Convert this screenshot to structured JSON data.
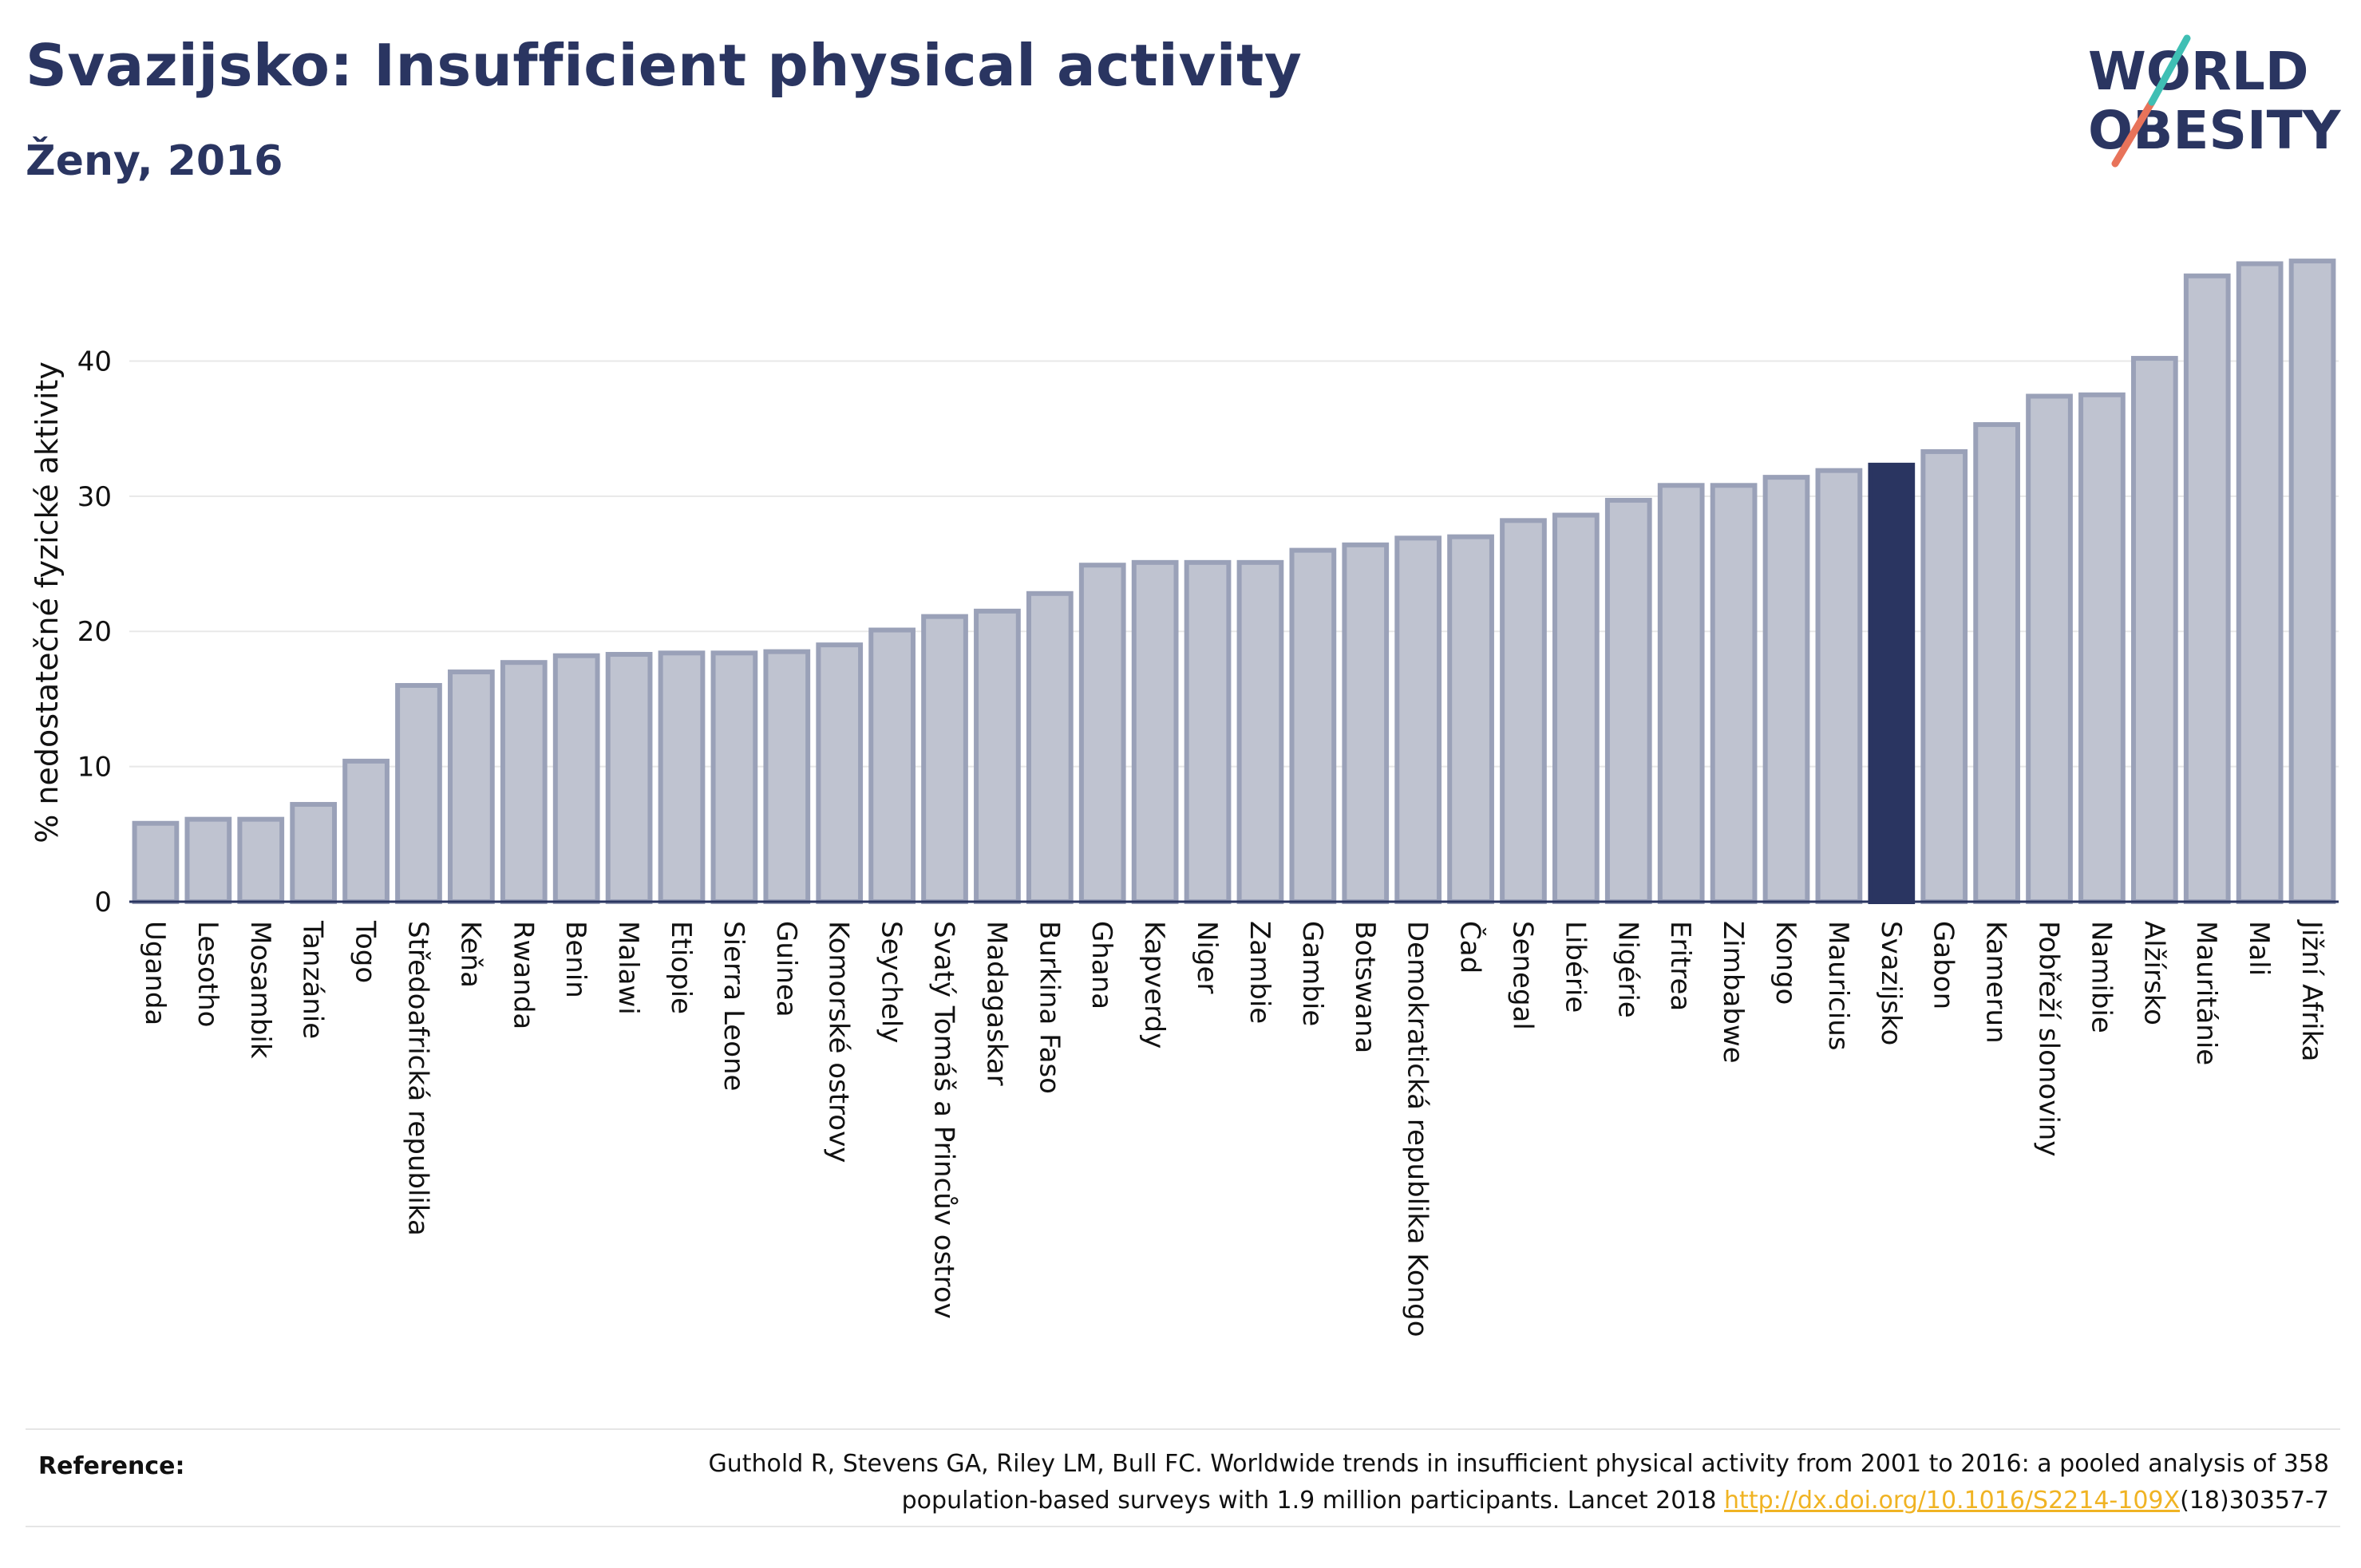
{
  "header": {
    "title": "Svazijsko: Insufficient physical activity",
    "subtitle": "Ženy, 2016"
  },
  "logo": {
    "line1": "WORLD",
    "line2": "OBESITY"
  },
  "colors": {
    "bar": "#bfc3d0",
    "bar_edge": "#9aa1b8",
    "highlight": "#2a3561",
    "grid": "#e8e8e8"
  },
  "chart_data": {
    "type": "bar",
    "ylabel": "% nedostatečné fyzické aktivity",
    "xlabel": "",
    "ylim": [
      0,
      49
    ],
    "yticks": [
      0,
      10,
      20,
      30,
      40
    ],
    "highlight": "Svazijsko",
    "categories": [
      "Uganda",
      "Lesotho",
      "Mosambik",
      "Tanzánie",
      "Togo",
      "Středoafrická republika",
      "Keňa",
      "Rwanda",
      "Benin",
      "Malawi",
      "Etiopie",
      "Sierra Leone",
      "Guinea",
      "Komorské ostrovy",
      "Seychely",
      "Svatý Tomáš a Princův ostrov",
      "Madagaskar",
      "Burkina Faso",
      "Ghana",
      "Kapverdy",
      "Niger",
      "Zambie",
      "Gambie",
      "Botswana",
      "Demokratická republika Kongo",
      "Čad",
      "Senegal",
      "Libérie",
      "Nigérie",
      "Eritrea",
      "Zimbabwe",
      "Kongo",
      "Mauricius",
      "Svazijsko",
      "Gabon",
      "Kamerun",
      "Pobřeží slonoviny",
      "Namibie",
      "Alžírsko",
      "Mauritánie",
      "Mali",
      "Jižní Afrika"
    ],
    "values": [
      5.8,
      6.1,
      6.1,
      7.2,
      10.4,
      16.0,
      17.0,
      17.7,
      18.2,
      18.3,
      18.4,
      18.4,
      18.5,
      19.0,
      20.1,
      21.1,
      21.5,
      22.8,
      24.9,
      25.1,
      25.1,
      25.1,
      26.0,
      26.4,
      26.9,
      27.0,
      28.2,
      28.6,
      29.7,
      30.8,
      30.8,
      31.4,
      31.9,
      32.3,
      33.3,
      35.3,
      37.4,
      37.5,
      40.2,
      46.3,
      47.2,
      47.4
    ]
  },
  "reference": {
    "label": "Reference:",
    "line1": "Guthold R, Stevens GA, Riley LM, Bull FC. Worldwide trends in insufficient physical activity from 2001 to 2016: a pooled analysis of 358",
    "line2_pre": "population-based surveys with 1.9 million participants. Lancet 2018 ",
    "link": "http://dx.doi.org/10.1016/S2214-109X",
    "line2_post": "(18)30357-7"
  }
}
